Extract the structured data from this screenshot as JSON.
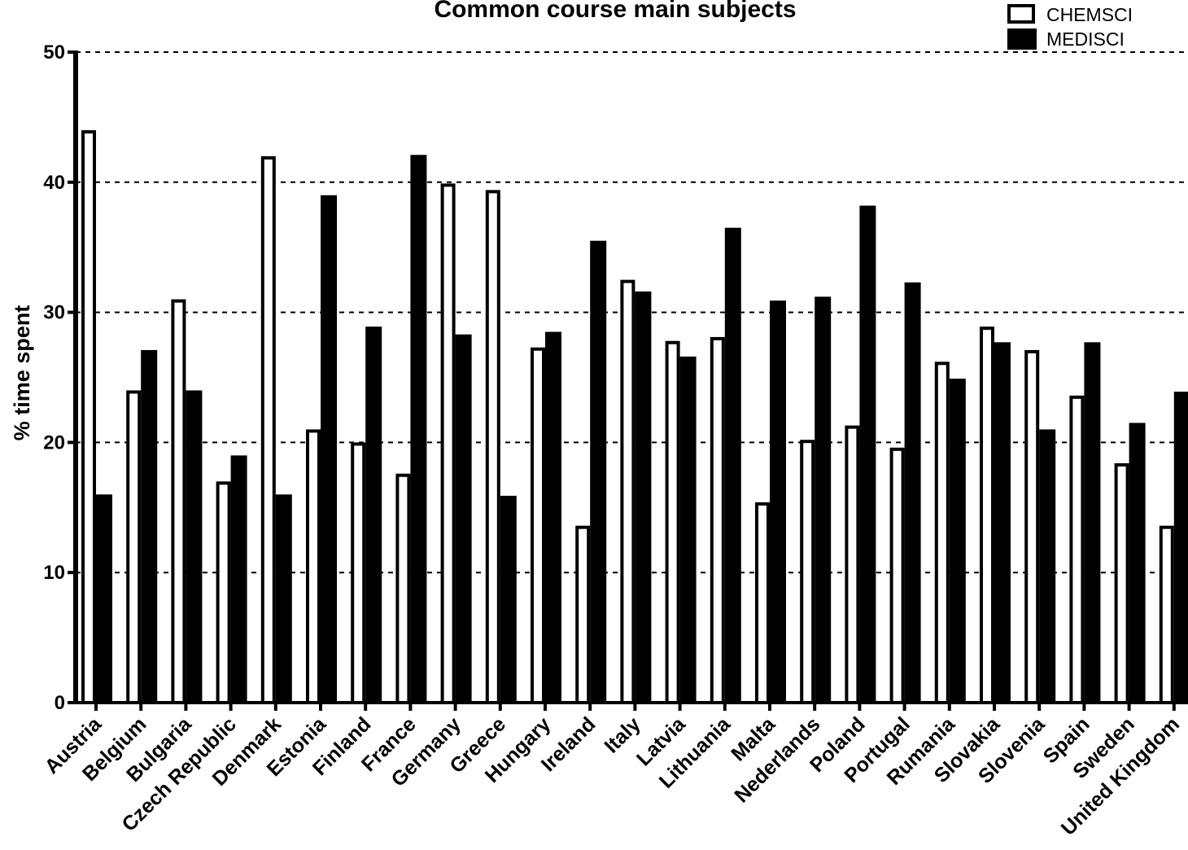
{
  "chart_data": {
    "type": "bar",
    "title": "Common course main subjects",
    "ylabel": "% time spent",
    "xlabel": "",
    "ylim": [
      0,
      50
    ],
    "yticks": [
      0,
      10,
      20,
      30,
      40,
      50
    ],
    "grid": "dashed horizontal at 10, 20, 30, 40, 50",
    "legend_position": "top-right",
    "categories": [
      "Austria",
      "Belgium",
      "Bulgaria",
      "Czech Republic",
      "Denmark",
      "Estonia",
      "Finland",
      "France",
      "Germany",
      "Greece",
      "Hungary",
      "Ireland",
      "Italy",
      "Latvia",
      "Lithuania",
      "Malta",
      "Nederlands",
      "Poland",
      "Portugal",
      "Rumania",
      "Slovakia",
      "Slovenia",
      "Spain",
      "Sweden",
      "United Kingdom"
    ],
    "series": [
      {
        "name": "CHEMSCI",
        "style": "hollow",
        "color": "#000000",
        "values": [
          44,
          24,
          31,
          17,
          42,
          21,
          20,
          17.6,
          39.9,
          39.4,
          27.3,
          13.6,
          32.5,
          27.8,
          28.1,
          15.4,
          20.2,
          21.3,
          19.6,
          26.2,
          28.9,
          27.1,
          23.6,
          18.4,
          13.6
        ]
      },
      {
        "name": "MEDISCI",
        "style": "filled",
        "color": "#000000",
        "values": [
          16,
          27.1,
          24,
          19,
          16,
          39,
          28.9,
          42.1,
          28.3,
          15.9,
          28.5,
          35.5,
          31.6,
          26.6,
          36.5,
          30.9,
          31.2,
          38.2,
          32.3,
          24.9,
          27.7,
          21.0,
          27.7,
          21.5,
          23.9
        ]
      }
    ]
  }
}
